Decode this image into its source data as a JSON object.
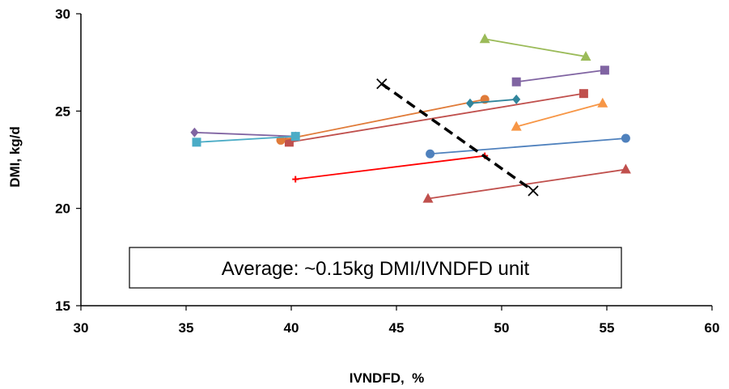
{
  "chart_data": {
    "type": "scatter",
    "title": "",
    "xlabel": "IVNDFD,  %",
    "ylabel": "DMI, kg/d",
    "xlim": [
      30,
      60
    ],
    "ylim": [
      15,
      30
    ],
    "xticks": [
      "30",
      "35",
      "40",
      "45",
      "50",
      "55",
      "60"
    ],
    "yticks": [
      "15",
      "20",
      "25",
      "30"
    ],
    "grid": false,
    "annotation": "Average: ~0.15kg DMI/IVNDFD unit",
    "series": [
      {
        "color": "#9BBB59",
        "marker": "triangle",
        "points": [
          [
            49.2,
            28.7
          ],
          [
            54.0,
            27.8
          ]
        ]
      },
      {
        "color": "#8064A2",
        "marker": "square",
        "points": [
          [
            50.7,
            26.5
          ],
          [
            54.9,
            27.1
          ]
        ]
      },
      {
        "color": "#C0504D",
        "marker": "square",
        "points": [
          [
            39.9,
            23.4
          ],
          [
            53.9,
            25.9
          ]
        ]
      },
      {
        "color": "#E07B39",
        "marker": "circle",
        "points": [
          [
            39.5,
            23.5
          ],
          [
            49.2,
            25.6
          ]
        ]
      },
      {
        "color": "#31859C",
        "marker": "diamond",
        "points": [
          [
            48.5,
            25.4
          ],
          [
            50.7,
            25.6
          ]
        ]
      },
      {
        "color": "#8064A2",
        "marker": "diamond",
        "points": [
          [
            35.4,
            23.9
          ],
          [
            40.2,
            23.7
          ]
        ]
      },
      {
        "color": "#4BACC6",
        "marker": "square",
        "points": [
          [
            35.5,
            23.4
          ],
          [
            40.2,
            23.7
          ]
        ]
      },
      {
        "color": "#F79646",
        "marker": "triangle",
        "points": [
          [
            50.7,
            24.2
          ],
          [
            54.8,
            25.4
          ]
        ]
      },
      {
        "color": "#4F81BD",
        "marker": "circle",
        "points": [
          [
            46.6,
            22.8
          ],
          [
            55.9,
            23.6
          ]
        ]
      },
      {
        "color": "#FF0000",
        "marker": "plus",
        "points": [
          [
            40.2,
            21.5
          ],
          [
            49.2,
            22.7
          ]
        ]
      },
      {
        "color": "#C0504D",
        "marker": "triangle",
        "points": [
          [
            46.5,
            20.5
          ],
          [
            55.9,
            22.0
          ]
        ]
      },
      {
        "color": "#000000",
        "marker": "x",
        "dashed": true,
        "points": [
          [
            44.3,
            26.4
          ],
          [
            51.5,
            20.9
          ]
        ]
      }
    ]
  }
}
